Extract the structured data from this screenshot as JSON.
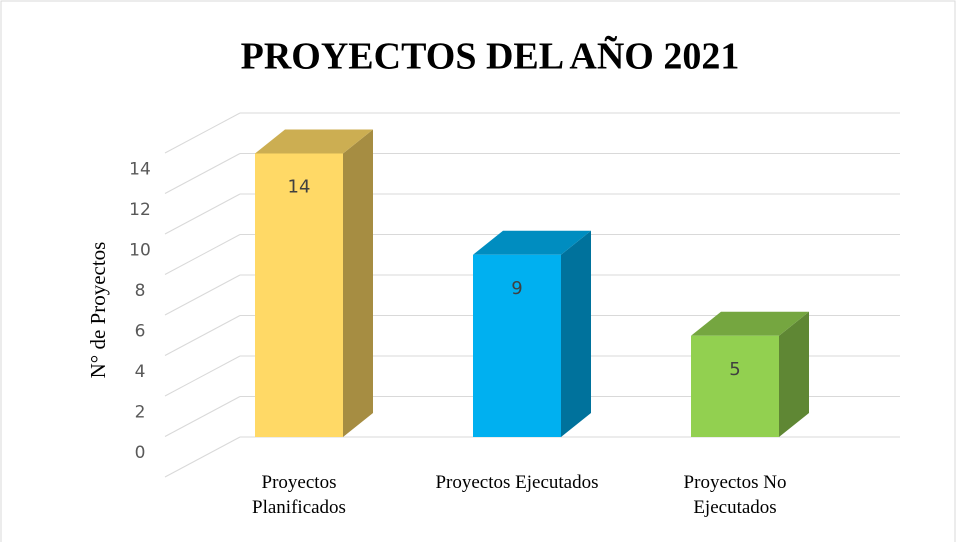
{
  "chart_data": {
    "type": "bar3d",
    "title": "PROYECTOS DEL AÑO 2021",
    "y_label": "N° de Proyectos",
    "categories": [
      "Proyectos Planificados",
      "Proyectos Ejecutados",
      "Proyectos No Ejecutados"
    ],
    "values": [
      14,
      9,
      5
    ],
    "colors": [
      "#ffd966",
      "#00b0f0",
      "#92d050"
    ],
    "ylim": [
      0,
      16
    ],
    "yticks": [
      0,
      2,
      4,
      6,
      8,
      10,
      12,
      14
    ],
    "grid": true
  }
}
